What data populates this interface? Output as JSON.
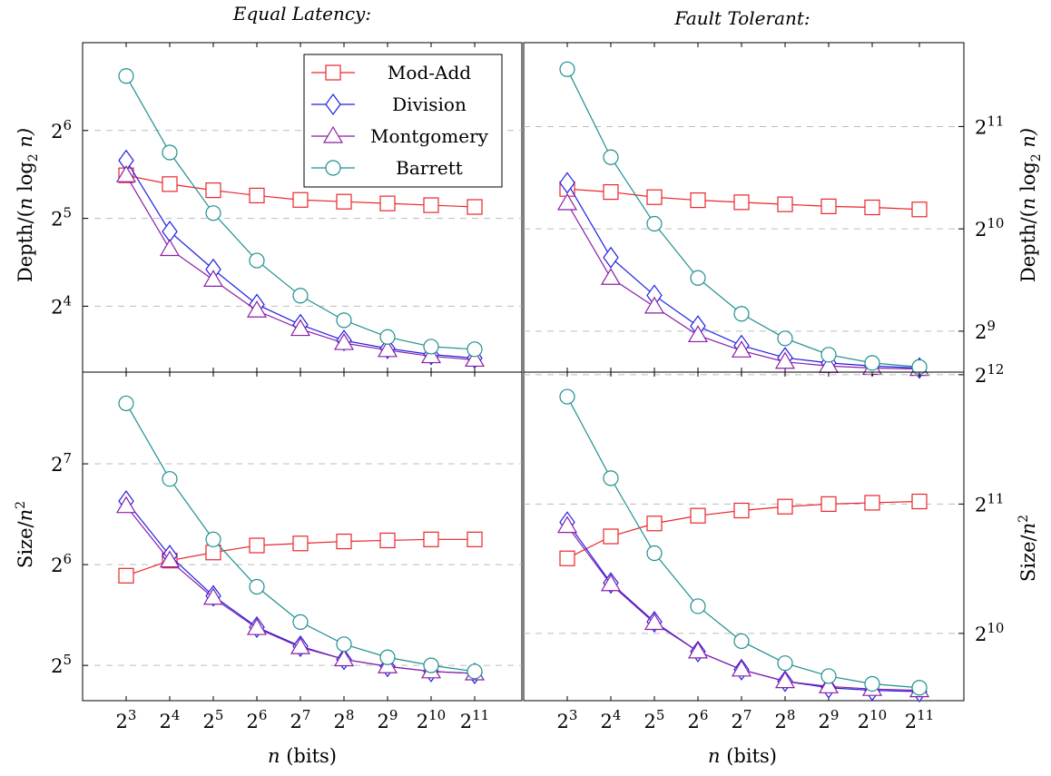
{
  "figure": {
    "titles": [
      "Equal Latency:",
      "Fault Tolerant:"
    ],
    "xlabel_prefix": "n",
    "xlabel_suffix": " (bits)",
    "depth_label_prefix": "Depth/(",
    "depth_label_n": "n",
    "depth_label_log": " log",
    "depth_label_base": "2",
    "depth_label_suffix": " n)",
    "size_label_prefix": "Size/",
    "size_label_n": "n",
    "size_label_exp": "2"
  },
  "chart_data": [
    {
      "type": "line",
      "title": "Equal Latency:",
      "xlabel": "",
      "ylabel": "Depth/(n log2 n)",
      "x": [
        3,
        4,
        5,
        6,
        7,
        8,
        9,
        10,
        11
      ],
      "x_scale": "log2",
      "y_scale": "log2",
      "y_ticks": [
        4,
        5,
        6
      ],
      "y_range": [
        3.25,
        7.0
      ],
      "grid": "horizontal dashed",
      "legend": "top-right",
      "series": [
        {
          "name": "Mod-Add",
          "color": "#e8262b",
          "marker": "square",
          "values": [
            5.49,
            5.39,
            5.32,
            5.26,
            5.21,
            5.19,
            5.17,
            5.15,
            5.13
          ]
        },
        {
          "name": "Division",
          "color": "#1f1fe6",
          "marker": "diamond",
          "values": [
            5.66,
            4.85,
            4.42,
            4.02,
            3.79,
            3.61,
            3.52,
            3.45,
            3.41
          ]
        },
        {
          "name": "Montgomery",
          "color": "#8a1fa6",
          "marker": "triangle",
          "values": [
            5.49,
            4.65,
            4.3,
            3.95,
            3.74,
            3.58,
            3.5,
            3.43,
            3.39
          ]
        },
        {
          "name": "Barrett",
          "color": "#1f8f8f",
          "marker": "circle",
          "values": [
            6.62,
            5.75,
            5.06,
            4.52,
            4.12,
            3.84,
            3.65,
            3.54,
            3.51
          ]
        }
      ]
    },
    {
      "type": "line",
      "title": "Fault Tolerant:",
      "xlabel": "",
      "ylabel": "Depth/(n log2 n)",
      "x": [
        3,
        4,
        5,
        6,
        7,
        8,
        9,
        10,
        11
      ],
      "x_scale": "log2",
      "y_scale": "log2",
      "y_ticks": [
        9,
        10,
        11
      ],
      "y_range": [
        8.6,
        11.82
      ],
      "grid": "horizontal dashed",
      "legend": "none",
      "series": [
        {
          "name": "Mod-Add",
          "color": "#e8262b",
          "marker": "square",
          "values": [
            10.39,
            10.36,
            10.31,
            10.28,
            10.26,
            10.24,
            10.22,
            10.21,
            10.19
          ]
        },
        {
          "name": "Division",
          "color": "#1f1fe6",
          "marker": "diamond",
          "values": [
            10.45,
            9.72,
            9.35,
            9.05,
            8.86,
            8.74,
            8.69,
            8.66,
            8.64
          ]
        },
        {
          "name": "Montgomery",
          "color": "#8a1fa6",
          "marker": "triangle",
          "values": [
            10.25,
            9.52,
            9.24,
            8.96,
            8.81,
            8.7,
            8.66,
            8.64,
            8.63
          ]
        },
        {
          "name": "Barrett",
          "color": "#1f8f8f",
          "marker": "circle",
          "values": [
            11.56,
            10.7,
            10.05,
            9.52,
            9.17,
            8.93,
            8.77,
            8.69,
            8.65
          ]
        }
      ]
    },
    {
      "type": "line",
      "title": "",
      "xlabel": "n (bits)",
      "ylabel": "Size/n^2",
      "x": [
        3,
        4,
        5,
        6,
        7,
        8,
        9,
        10,
        11
      ],
      "x_scale": "log2",
      "y_scale": "log2",
      "y_ticks": [
        5,
        6,
        7
      ],
      "y_range": [
        4.65,
        7.91
      ],
      "grid": "horizontal dashed",
      "legend": "none",
      "series": [
        {
          "name": "Mod-Add",
          "color": "#e8262b",
          "marker": "square",
          "values": [
            5.89,
            6.04,
            6.12,
            6.19,
            6.21,
            6.23,
            6.24,
            6.25,
            6.25
          ]
        },
        {
          "name": "Division",
          "color": "#1f1fe6",
          "marker": "diamond",
          "values": [
            6.63,
            6.09,
            5.69,
            5.38,
            5.19,
            5.06,
            4.99,
            4.94,
            4.92
          ]
        },
        {
          "name": "Montgomery",
          "color": "#8a1fa6",
          "marker": "triangle",
          "values": [
            6.58,
            6.04,
            5.67,
            5.37,
            5.18,
            5.06,
            4.99,
            4.94,
            4.92
          ]
        },
        {
          "name": "Barrett",
          "color": "#1f8f8f",
          "marker": "circle",
          "values": [
            7.6,
            6.85,
            6.25,
            5.78,
            5.43,
            5.21,
            5.08,
            5.0,
            4.94
          ]
        }
      ]
    },
    {
      "type": "line",
      "title": "",
      "xlabel": "n (bits)",
      "ylabel": "Size/n^2",
      "x": [
        3,
        4,
        5,
        6,
        7,
        8,
        9,
        10,
        11
      ],
      "x_scale": "log2",
      "y_scale": "log2",
      "y_ticks": [
        10,
        11,
        12
      ],
      "y_range": [
        9.48,
        12.02
      ],
      "grid": "horizontal dashed",
      "legend": "none",
      "series": [
        {
          "name": "Mod-Add",
          "color": "#e8262b",
          "marker": "square",
          "values": [
            10.58,
            10.75,
            10.85,
            10.91,
            10.95,
            10.98,
            11.0,
            11.01,
            11.02
          ]
        },
        {
          "name": "Division",
          "color": "#1f1fe6",
          "marker": "diamond",
          "values": [
            10.86,
            10.39,
            10.09,
            9.86,
            9.72,
            9.63,
            9.58,
            9.56,
            9.55
          ]
        },
        {
          "name": "Montgomery",
          "color": "#8a1fa6",
          "marker": "triangle",
          "values": [
            10.83,
            10.38,
            10.08,
            9.86,
            9.72,
            9.63,
            9.59,
            9.57,
            9.56
          ]
        },
        {
          "name": "Barrett",
          "color": "#1f8f8f",
          "marker": "circle",
          "values": [
            11.83,
            11.2,
            10.62,
            10.21,
            9.94,
            9.77,
            9.67,
            9.61,
            9.58
          ]
        }
      ]
    }
  ]
}
